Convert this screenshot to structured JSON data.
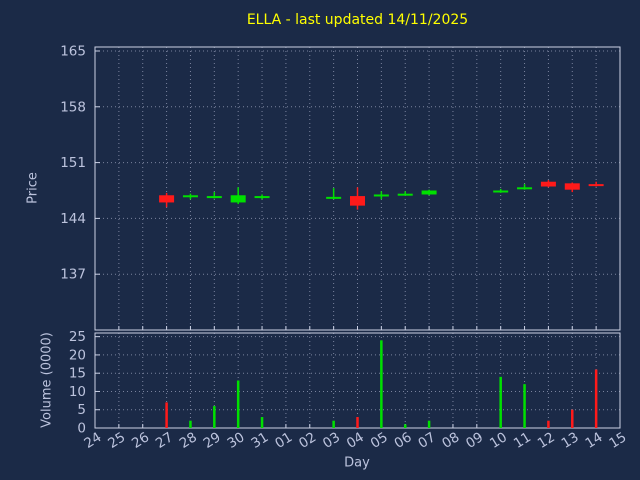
{
  "title": "ELLA - last updated 14/11/2025",
  "colors": {
    "background": "#1b2a47",
    "title_text": "#ffff00",
    "axis_text": "#bcc3dd",
    "grid": "#9aa1bb",
    "border": "#ccd2e6",
    "up": "#00e000",
    "down": "#ff1a1a"
  },
  "chart_data": {
    "type": "candlestick-with-volume",
    "title": "ELLA - last updated 14/11/2025",
    "xlabel": "Day",
    "price_ylabel": "Price",
    "volume_ylabel": "Volume (0000)",
    "x_categories": [
      "24",
      "25",
      "26",
      "27",
      "28",
      "29",
      "30",
      "31",
      "01",
      "02",
      "03",
      "04",
      "05",
      "06",
      "07",
      "08",
      "09",
      "10",
      "11",
      "12",
      "13",
      "14",
      "15"
    ],
    "price_ticks": [
      137,
      144,
      151,
      158,
      165
    ],
    "price_range": [
      130,
      165.5
    ],
    "volume_ticks": [
      0,
      5,
      10,
      15,
      20,
      25
    ],
    "volume_range": [
      0,
      26
    ],
    "legend_position": "none",
    "grid": "dotted",
    "candles": [
      {
        "day": "27",
        "open": 146.9,
        "high": 147.2,
        "low": 145.4,
        "close": 146.0,
        "volume": 7
      },
      {
        "day": "28",
        "open": 146.7,
        "high": 147.1,
        "low": 146.4,
        "close": 146.9,
        "volume": 2
      },
      {
        "day": "29",
        "open": 146.7,
        "high": 147.3,
        "low": 146.5,
        "close": 146.8,
        "volume": 6
      },
      {
        "day": "30",
        "open": 146.0,
        "high": 147.9,
        "low": 145.8,
        "close": 146.9,
        "volume": 13
      },
      {
        "day": "31",
        "open": 146.7,
        "high": 147.0,
        "low": 146.4,
        "close": 146.8,
        "volume": 3
      },
      {
        "day": "03",
        "open": 146.6,
        "high": 147.8,
        "low": 146.4,
        "close": 146.7,
        "volume": 2
      },
      {
        "day": "04",
        "open": 146.8,
        "high": 147.9,
        "low": 145.1,
        "close": 145.6,
        "volume": 3
      },
      {
        "day": "05",
        "open": 146.8,
        "high": 147.4,
        "low": 146.4,
        "close": 147.0,
        "volume": 24
      },
      {
        "day": "06",
        "open": 147.0,
        "high": 147.4,
        "low": 146.9,
        "close": 147.1,
        "volume": 1
      },
      {
        "day": "07",
        "open": 147.0,
        "high": 147.6,
        "low": 146.9,
        "close": 147.5,
        "volume": 2
      },
      {
        "day": "10",
        "open": 147.4,
        "high": 147.7,
        "low": 147.2,
        "close": 147.5,
        "volume": 14
      },
      {
        "day": "11",
        "open": 147.8,
        "high": 148.3,
        "low": 147.6,
        "close": 147.9,
        "volume": 12
      },
      {
        "day": "12",
        "open": 148.6,
        "high": 148.8,
        "low": 147.9,
        "close": 148.0,
        "volume": 2
      },
      {
        "day": "13",
        "open": 148.4,
        "high": 148.5,
        "low": 147.3,
        "close": 147.6,
        "volume": 5
      },
      {
        "day": "14",
        "open": 148.3,
        "high": 148.6,
        "low": 148.0,
        "close": 148.1,
        "volume": 16
      }
    ]
  }
}
